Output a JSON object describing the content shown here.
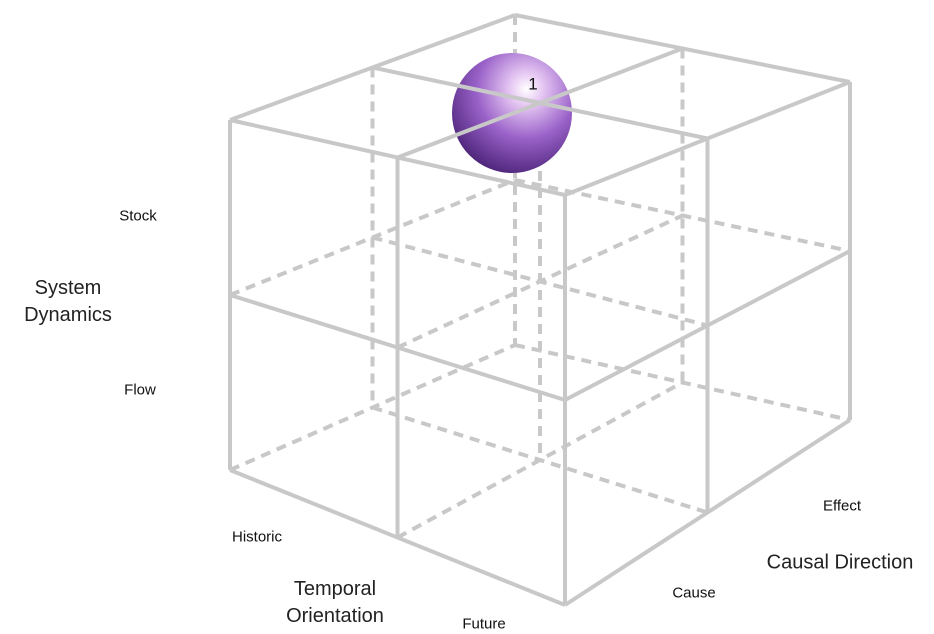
{
  "axes": {
    "vertical": {
      "title": "System Dynamics",
      "levels": [
        "Stock",
        "Flow"
      ]
    },
    "temporal": {
      "title": "Temporal Orientation",
      "levels": [
        "Historic",
        "Future"
      ]
    },
    "causal": {
      "title": "Causal Direction",
      "levels": [
        "Cause",
        "Effect"
      ]
    }
  },
  "marker": {
    "label": "1"
  }
}
